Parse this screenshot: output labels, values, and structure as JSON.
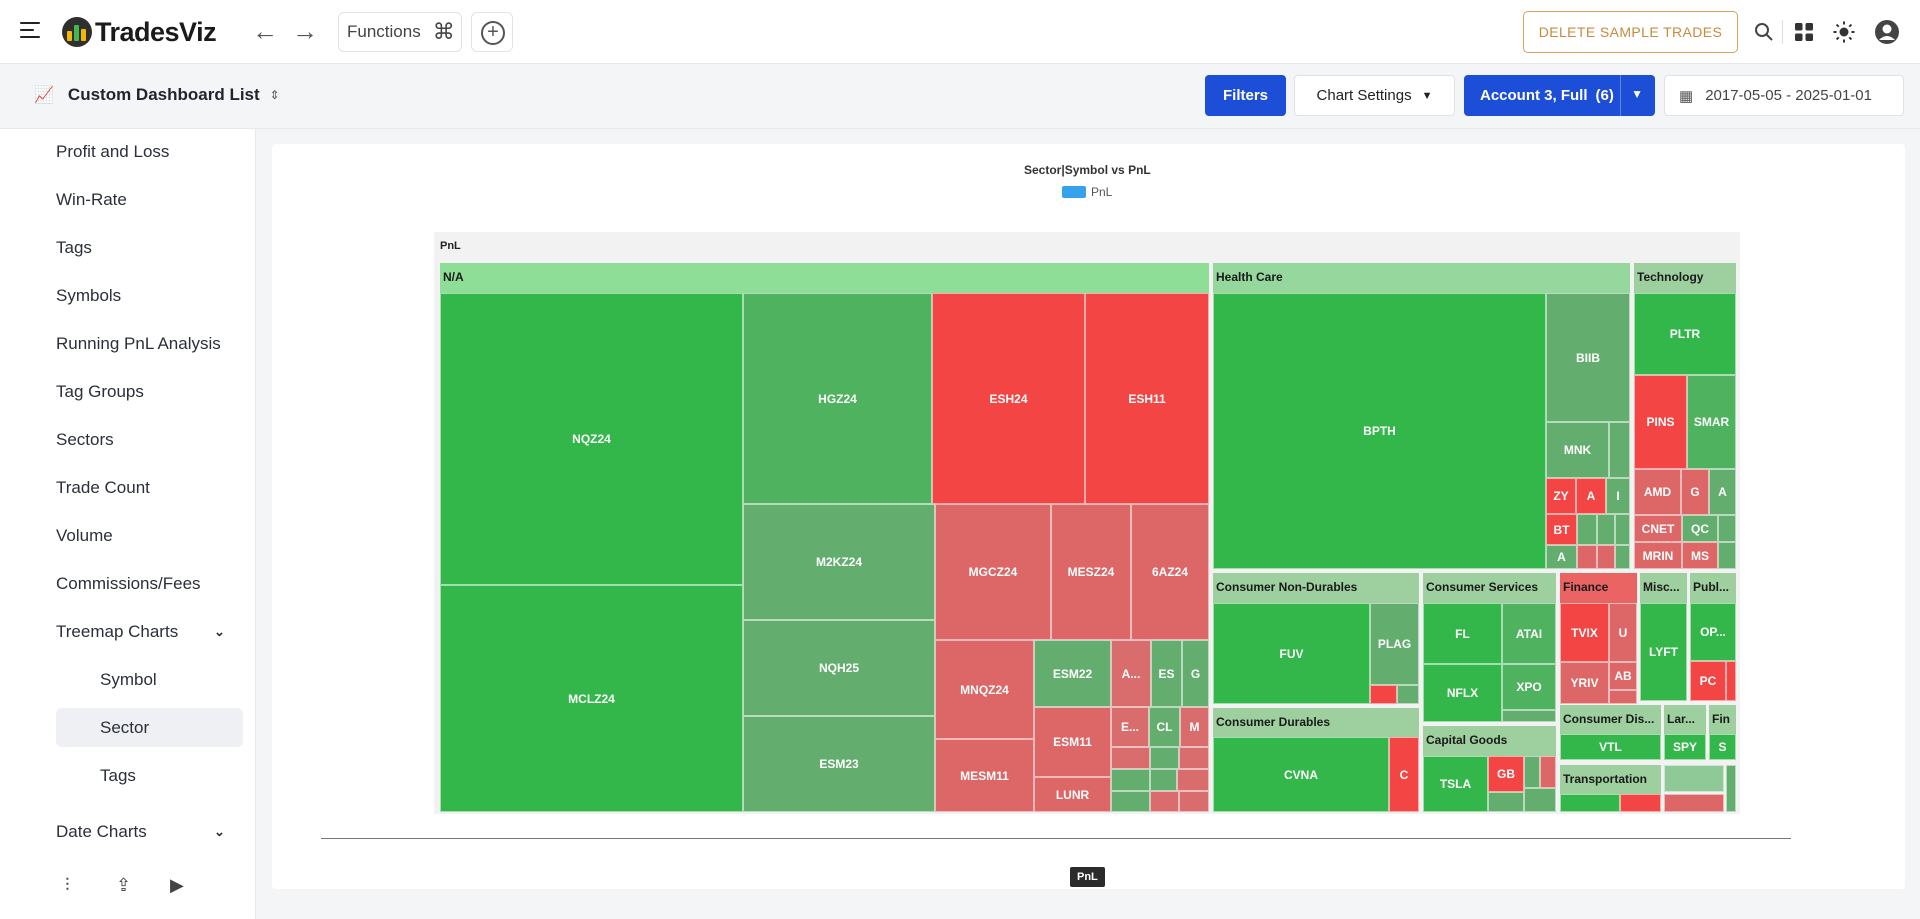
{
  "brand": {
    "name": "TradesViz"
  },
  "topbar": {
    "functions_label": "Functions",
    "delete_label": "DELETE SAMPLE TRADES",
    "icons": [
      "menu-icon",
      "back-arrow-icon",
      "forward-arrow-icon",
      "command-icon",
      "add-icon",
      "search-icon",
      "apps-icon",
      "theme-icon",
      "user-icon"
    ]
  },
  "subbar": {
    "dashboard_title": "Custom Dashboard List",
    "filters_label": "Filters",
    "chart_settings_label": "Chart Settings",
    "account_label": "Account 3, Full",
    "account_count": "(6)",
    "date_range": "2017-05-05 - 2025-01-01"
  },
  "sidebar": {
    "items": [
      "Profit and Loss",
      "Win-Rate",
      "Tags",
      "Symbols",
      "Running PnL Analysis",
      "Tag Groups",
      "Sectors",
      "Trade Count",
      "Volume",
      "Commissions/Fees",
      "Treemap Charts"
    ],
    "treemap_children": [
      "Symbol",
      "Sector",
      "Tags"
    ],
    "date_charts": "Date Charts"
  },
  "chart": {
    "title": "Sector|Symbol vs PnL",
    "legend": "PnL",
    "root_label": "PnL",
    "x_label": "PnL",
    "colors": {
      "positive": "#33b74a",
      "negative": "#f44545",
      "legend": "#36a2eb"
    }
  },
  "chart_data": {
    "type": "treemap",
    "title": "Sector|Symbol vs PnL",
    "legend": [
      "PnL"
    ],
    "root": "PnL",
    "groups": [
      {
        "name": "N/A",
        "symbols": [
          "NQZ24",
          "MCLZ24",
          "HGZ24",
          "M2KZ24",
          "NQH25",
          "ESM23",
          "ESH24",
          "ESH11",
          "MGCZ24",
          "MESZ24",
          "6AZ24",
          "MNQZ24",
          "ESM22",
          "A...",
          "ES",
          "G",
          "E...",
          "CL",
          "M",
          "ESM11",
          "LUNR",
          "MESM11"
        ]
      },
      {
        "name": "Health Care",
        "symbols": [
          "BPTH",
          "BIIB",
          "MNK",
          "ZY",
          "A",
          "I",
          "BT",
          "A"
        ]
      },
      {
        "name": "Technology",
        "symbols": [
          "PLTR",
          "PINS",
          "SMAR",
          "AMD",
          "G",
          "A",
          "CNET",
          "QC",
          "MRIN",
          "MS"
        ]
      },
      {
        "name": "Consumer Non-Durables",
        "symbols": [
          "FUV",
          "PLAG"
        ]
      },
      {
        "name": "Consumer Services",
        "symbols": [
          "FL",
          "ATAI",
          "NFLX",
          "XPO"
        ]
      },
      {
        "name": "Finance",
        "symbols": [
          "TVIX",
          "U",
          "YRIV",
          "AB"
        ]
      },
      {
        "name": "Misc...",
        "symbols": [
          "LYFT"
        ]
      },
      {
        "name": "Publ...",
        "symbols": [
          "OP...",
          "PC"
        ]
      },
      {
        "name": "Consumer Durables",
        "symbols": [
          "CVNA",
          "C"
        ]
      },
      {
        "name": "Capital Goods",
        "symbols": [
          "TSLA",
          "GB"
        ]
      },
      {
        "name": "Consumer Dis...",
        "symbols": [
          "VTL"
        ]
      },
      {
        "name": "Lar...",
        "symbols": [
          "SPY"
        ]
      },
      {
        "name": "Fin",
        "symbols": [
          "S"
        ]
      },
      {
        "name": "Transportation",
        "symbols": []
      }
    ]
  }
}
